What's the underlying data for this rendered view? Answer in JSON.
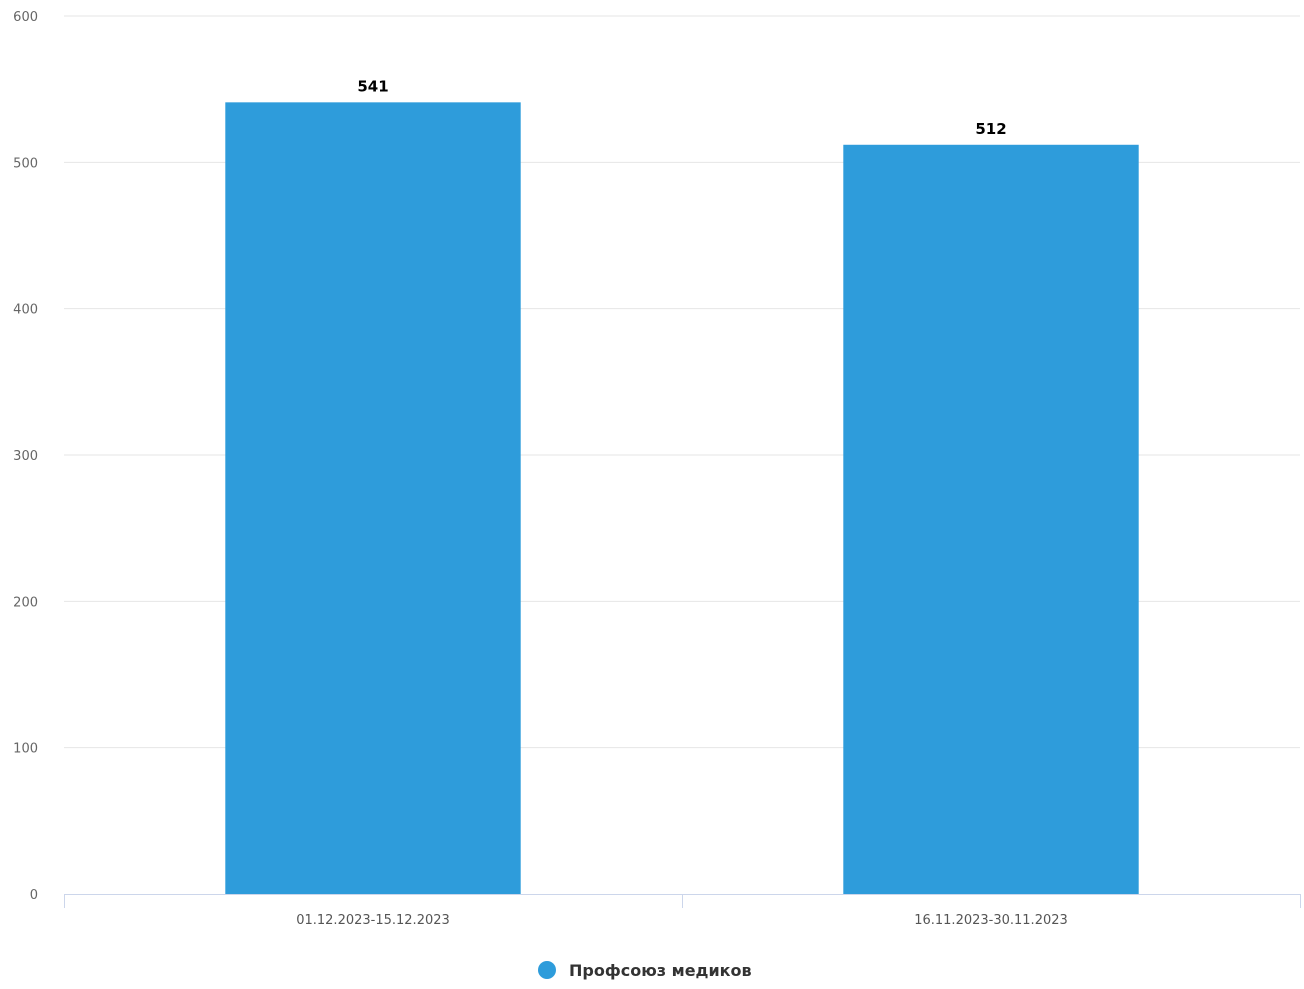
{
  "chart_data": {
    "type": "bar",
    "categories": [
      "01.12.2023-15.12.2023",
      "16.11.2023-30.11.2023"
    ],
    "series": [
      {
        "name": "Профсоюз медиков",
        "values": [
          541,
          512
        ],
        "color": "#2e9cdb"
      }
    ],
    "ylim": [
      0,
      600
    ],
    "yticks": [
      0,
      100,
      200,
      300,
      400,
      500,
      600
    ],
    "grid": true,
    "data_labels": true,
    "legend_position": "bottom-center"
  }
}
